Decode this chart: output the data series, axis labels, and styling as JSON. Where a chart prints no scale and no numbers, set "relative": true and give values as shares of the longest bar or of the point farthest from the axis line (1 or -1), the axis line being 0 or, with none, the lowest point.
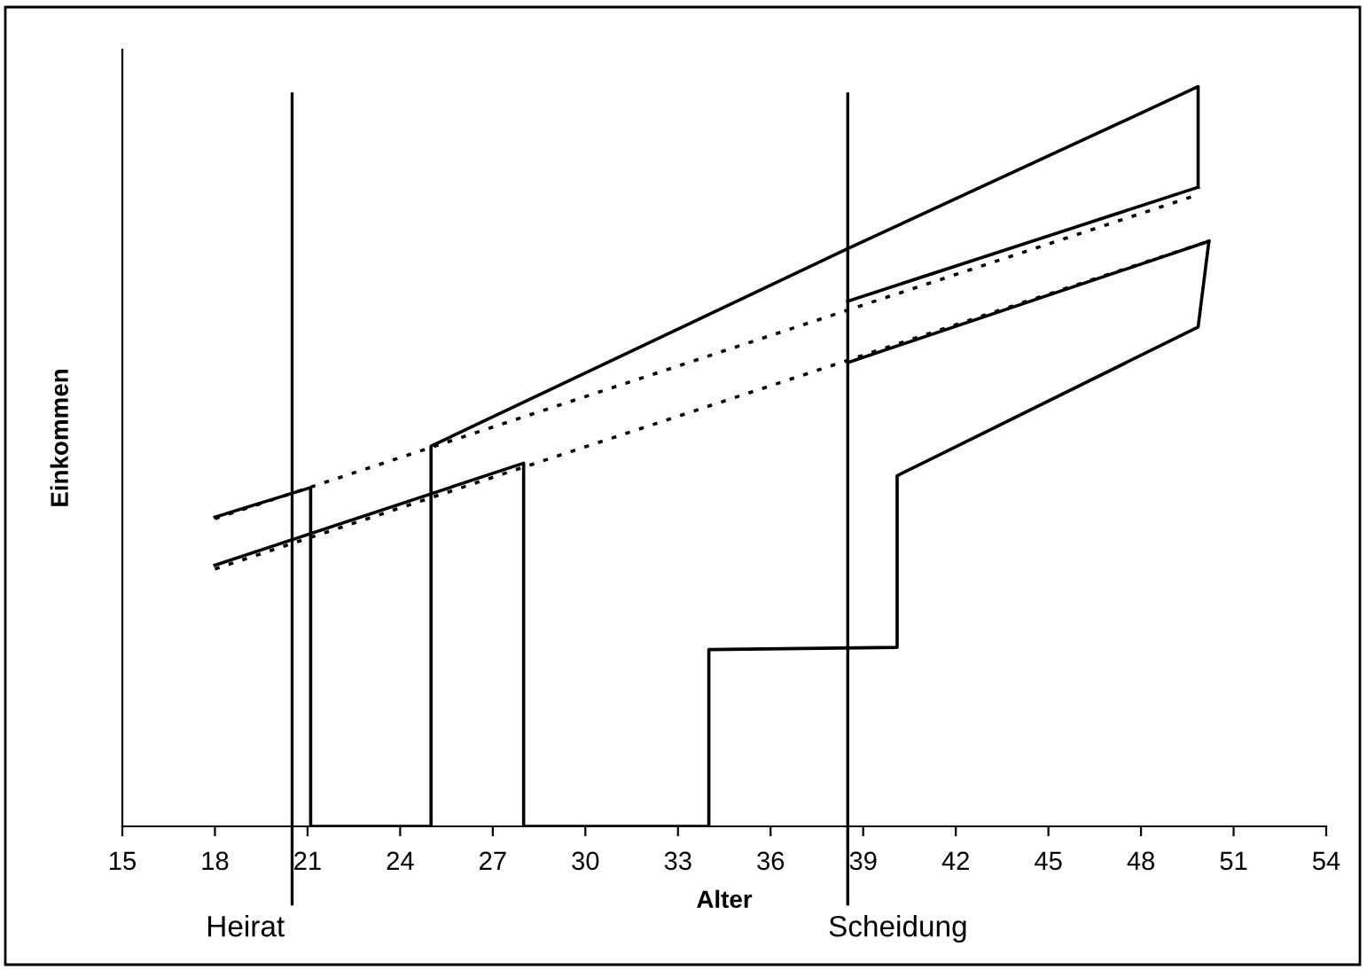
{
  "chart_data": {
    "type": "line",
    "relative": true,
    "xlabel": "Alter",
    "ylabel": "Einkommen",
    "xlim": [
      15,
      54
    ],
    "xticks": [
      15,
      18,
      21,
      24,
      27,
      30,
      33,
      36,
      39,
      42,
      45,
      48,
      51,
      54
    ],
    "grid": false,
    "marker": "none",
    "series": [
      {
        "color": "#000000",
        "line_style": "solid",
        "x": [
          18,
          21.1,
          21.1,
          25,
          25,
          38.5,
          49.85,
          49.85
        ],
        "values": [
          0.418,
          0.458,
          0,
          0,
          0.514,
          0.781,
          1.0,
          0.864
        ]
      },
      {
        "color": "#000000",
        "line_style": "solid",
        "x": [
          38.5,
          49.85
        ],
        "values": [
          0.71,
          0.864
        ]
      },
      {
        "color": "#000000",
        "line_style": "solid",
        "x": [
          18,
          28,
          28,
          34,
          34,
          40.1,
          40.1,
          49.85,
          50.2
        ],
        "values": [
          0.353,
          0.491,
          0,
          0,
          0.239,
          0.242,
          0.474,
          0.675,
          0.791
        ]
      },
      {
        "color": "#000000",
        "line_style": "solid",
        "x": [
          38.5,
          50.2
        ],
        "values": [
          0.627,
          0.791
        ]
      },
      {
        "color": "#000000",
        "line_style": "dotted",
        "x": [
          18,
          49.85
        ],
        "values": [
          0.416,
          0.854
        ]
      },
      {
        "color": "#000000",
        "line_style": "dotted",
        "x": [
          18,
          50.2
        ],
        "values": [
          0.348,
          0.791
        ]
      }
    ],
    "ref_lines": [
      {
        "axis": "x",
        "value": 20.5,
        "label": "Heirat",
        "color": "#000000"
      },
      {
        "axis": "x",
        "value": 38.5,
        "label": "Scheidung",
        "color": "#000000"
      }
    ]
  }
}
